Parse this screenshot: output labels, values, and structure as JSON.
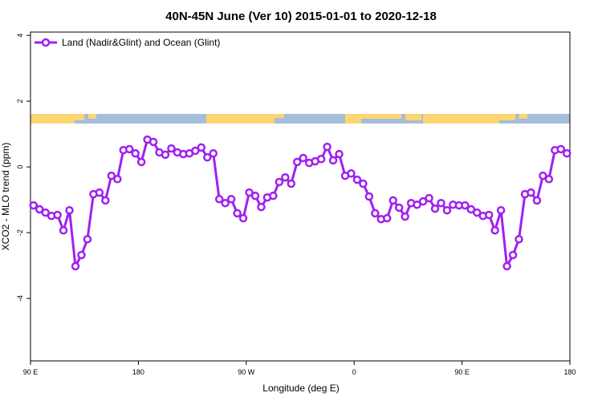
{
  "chart_data": {
    "type": "line",
    "title": "40N-45N June (Ver 10)   2015-01-01 to 2020-12-18",
    "x_label": "Longitude (deg E)",
    "y_label": "XCO2 - MLO trend (ppm)",
    "xlim": [
      90,
      540
    ],
    "ylim": [
      -5.9,
      4.1
    ],
    "xticks": [
      {
        "value": 90,
        "label": "90 E"
      },
      {
        "value": 180,
        "label": "180"
      },
      {
        "value": 270,
        "label": "90 W"
      },
      {
        "value": 360,
        "label": "0"
      },
      {
        "value": 450,
        "label": "90 E"
      },
      {
        "value": 540,
        "label": "180"
      }
    ],
    "yticks": [
      -4,
      -2,
      0,
      2,
      4
    ],
    "legend": "topleft",
    "x": [
      92.5,
      97.5,
      102.5,
      107.5,
      112.5,
      117.5,
      122.5,
      127.5,
      132.5,
      137.5,
      142.5,
      147.5,
      152.5,
      157.5,
      162.5,
      167.5,
      172.5,
      177.5,
      182.5,
      187.5,
      192.5,
      197.5,
      202.5,
      207.5,
      212.5,
      217.5,
      222.5,
      227.5,
      232.5,
      237.5,
      242.5,
      247.5,
      252.5,
      257.5,
      262.5,
      267.5,
      272.5,
      277.5,
      282.5,
      287.5,
      292.5,
      297.5,
      302.5,
      307.5,
      312.5,
      317.5,
      322.5,
      327.5,
      332.5,
      337.5,
      342.5,
      347.5,
      352.5,
      357.5,
      362.5,
      367.5,
      372.5,
      377.5,
      382.5,
      387.5,
      392.5,
      397.5,
      402.5,
      407.5,
      412.5,
      417.5,
      422.5,
      427.5,
      432.5,
      437.5,
      442.5,
      447.5,
      452.5,
      457.5,
      462.5,
      467.5,
      472.5,
      477.5,
      482.5,
      487.5,
      492.5,
      497.5,
      502.5,
      507.5,
      512.5,
      517.5,
      522.5,
      527.5,
      532.5,
      537.5
    ],
    "series": [
      {
        "name": "Land (Nadir&Glint) and Ocean (Glint)",
        "color": "#a020f0",
        "values": [
          -1.17,
          -1.29,
          -1.39,
          -1.49,
          -1.46,
          -1.93,
          -1.32,
          -3.02,
          -2.68,
          -2.2,
          -0.83,
          -0.78,
          -1.02,
          -0.27,
          -0.37,
          0.51,
          0.54,
          0.41,
          0.15,
          0.83,
          0.76,
          0.44,
          0.37,
          0.56,
          0.44,
          0.39,
          0.41,
          0.49,
          0.59,
          0.29,
          0.41,
          -0.98,
          -1.1,
          -0.98,
          -1.41,
          -1.56,
          -0.78,
          -0.88,
          -1.22,
          -0.93,
          -0.88,
          -0.46,
          -0.32,
          -0.51,
          0.15,
          0.27,
          0.12,
          0.17,
          0.24,
          0.61,
          0.2,
          0.39,
          -0.27,
          -0.2,
          -0.39,
          -0.51,
          -0.9,
          -1.41,
          -1.59,
          -1.56,
          -1.02,
          -1.24,
          -1.51,
          -1.1,
          -1.15,
          -1.05,
          -0.95,
          -1.27,
          -1.1,
          -1.32,
          -1.15,
          -1.17,
          -1.17,
          -1.29,
          -1.39,
          -1.49,
          -1.46,
          -1.93,
          -1.32,
          -3.02,
          -2.68,
          -2.2,
          -0.83,
          -0.78,
          -1.02,
          -0.27,
          -0.37,
          0.51,
          0.54,
          0.41
        ]
      }
    ]
  }
}
